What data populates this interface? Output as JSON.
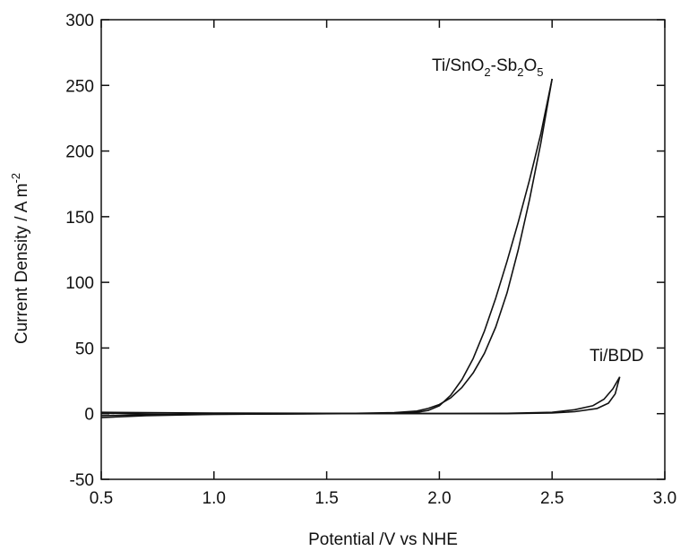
{
  "chart_data": {
    "type": "line",
    "title": "",
    "xlabel": "Potential /V vs NHE",
    "ylabel": {
      "main": "Current Density / A m",
      "sup": "-2"
    },
    "xlim": [
      0.5,
      3.0
    ],
    "ylim": [
      -50,
      300
    ],
    "xticks": [
      "0.5",
      "1.0",
      "1.5",
      "2.0",
      "2.5",
      "3.0"
    ],
    "yticks": [
      "-50",
      "0",
      "50",
      "100",
      "150",
      "200",
      "250",
      "300"
    ],
    "grid": false,
    "series": [
      {
        "name": "Ti/SnO2-Sb2O5",
        "label_parts": [
          "Ti/SnO",
          "2",
          "-Sb",
          "2",
          "O",
          "5"
        ],
        "color": "#111111",
        "forward": [
          [
            0.5,
            -1.5
          ],
          [
            0.8,
            -0.5
          ],
          [
            1.2,
            0.0
          ],
          [
            1.6,
            0.2
          ],
          [
            1.8,
            0.8
          ],
          [
            1.9,
            2
          ],
          [
            1.95,
            4
          ],
          [
            2.0,
            7
          ],
          [
            2.05,
            12
          ],
          [
            2.1,
            20
          ],
          [
            2.15,
            31
          ],
          [
            2.2,
            46
          ],
          [
            2.25,
            66
          ],
          [
            2.3,
            92
          ],
          [
            2.35,
            125
          ],
          [
            2.4,
            163
          ],
          [
            2.45,
            206
          ],
          [
            2.5,
            255
          ]
        ],
        "reverse": [
          [
            2.5,
            255
          ],
          [
            2.45,
            213
          ],
          [
            2.4,
            178
          ],
          [
            2.35,
            146
          ],
          [
            2.3,
            116
          ],
          [
            2.25,
            88
          ],
          [
            2.2,
            63
          ],
          [
            2.15,
            42
          ],
          [
            2.1,
            26
          ],
          [
            2.05,
            14
          ],
          [
            2.0,
            6
          ],
          [
            1.95,
            2.5
          ],
          [
            1.9,
            1
          ],
          [
            1.8,
            0.3
          ],
          [
            1.6,
            0.0
          ],
          [
            1.2,
            -0.3
          ],
          [
            0.8,
            -0.5
          ],
          [
            0.5,
            0.5
          ]
        ]
      },
      {
        "name": "Ti/BDD",
        "label_parts": [
          "Ti/BDD"
        ],
        "color": "#111111",
        "forward": [
          [
            0.5,
            -3
          ],
          [
            0.7,
            -1.5
          ],
          [
            1.0,
            -0.5
          ],
          [
            1.5,
            0
          ],
          [
            2.0,
            0
          ],
          [
            2.3,
            0
          ],
          [
            2.5,
            0.5
          ],
          [
            2.6,
            1.5
          ],
          [
            2.7,
            4
          ],
          [
            2.75,
            8
          ],
          [
            2.78,
            15
          ],
          [
            2.8,
            28
          ]
        ],
        "reverse": [
          [
            2.8,
            28
          ],
          [
            2.77,
            19
          ],
          [
            2.73,
            11
          ],
          [
            2.68,
            6
          ],
          [
            2.6,
            3
          ],
          [
            2.5,
            1
          ],
          [
            2.3,
            0.3
          ],
          [
            2.0,
            0.2
          ],
          [
            1.5,
            0.3
          ],
          [
            1.0,
            0.5
          ],
          [
            0.7,
            0.8
          ],
          [
            0.5,
            1
          ]
        ]
      }
    ]
  }
}
